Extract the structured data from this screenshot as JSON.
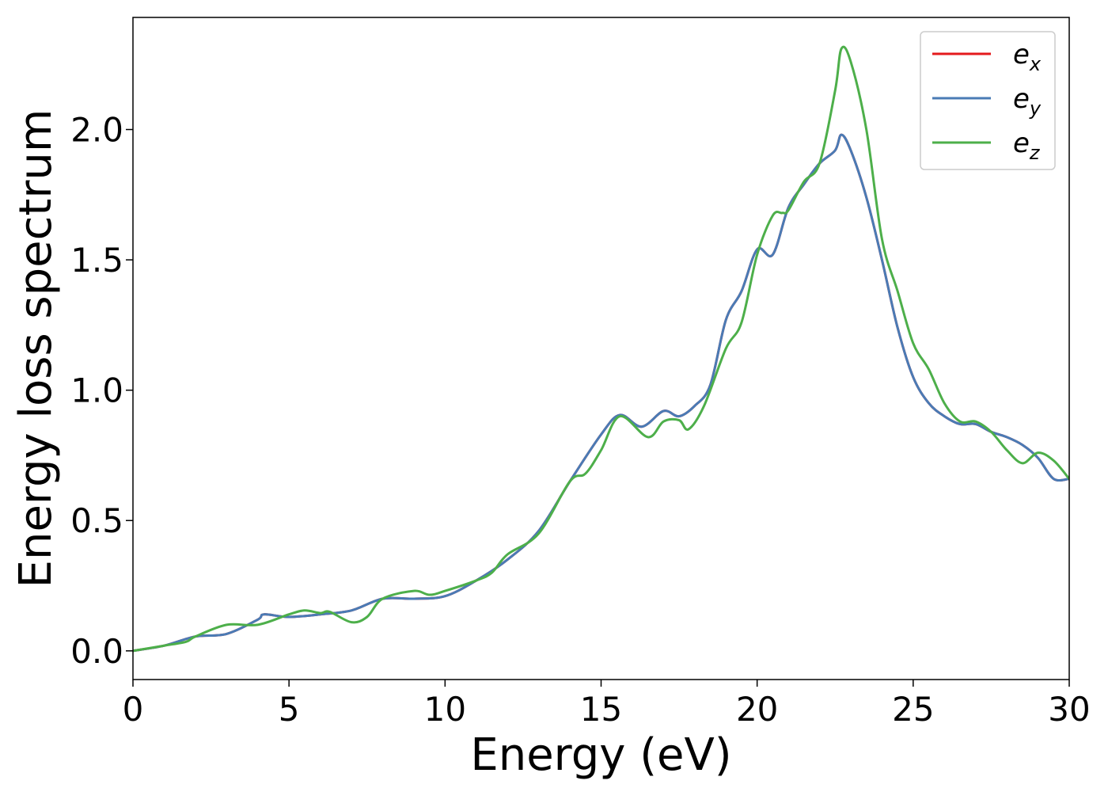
{
  "chart_data": {
    "type": "line",
    "title": "",
    "xlabel": "Energy (eV)",
    "ylabel": "Energy loss spectrum",
    "xlim": [
      0,
      30
    ],
    "ylim": [
      -0.11,
      2.43
    ],
    "xticks": [
      "0",
      "5",
      "10",
      "15",
      "20",
      "25",
      "30"
    ],
    "yticks": [
      "0.0",
      "0.5",
      "1.0",
      "1.5",
      "2.0"
    ],
    "grid": false,
    "legend_position": "top-right",
    "series": [
      {
        "name": "e_x",
        "legend_base": "e",
        "legend_sub": "x",
        "color": "#e41a1c",
        "x": [
          0,
          1,
          2,
          3,
          4,
          4.2,
          5,
          6,
          7,
          8,
          9,
          10,
          11,
          12,
          13,
          14,
          15,
          15.6,
          16.3,
          17,
          17.5,
          18,
          18.5,
          19,
          19.5,
          20,
          20.5,
          21,
          21.5,
          22,
          22.5,
          22.7,
          23,
          23.5,
          24,
          24.5,
          25,
          25.5,
          26,
          26.5,
          27,
          27.5,
          28,
          28.5,
          29,
          29.5,
          30
        ],
        "y": [
          0.0,
          0.02,
          0.055,
          0.065,
          0.12,
          0.14,
          0.13,
          0.14,
          0.155,
          0.2,
          0.2,
          0.21,
          0.27,
          0.35,
          0.46,
          0.65,
          0.83,
          0.905,
          0.86,
          0.92,
          0.9,
          0.94,
          1.02,
          1.27,
          1.38,
          1.54,
          1.52,
          1.7,
          1.79,
          1.87,
          1.92,
          1.98,
          1.92,
          1.74,
          1.5,
          1.24,
          1.05,
          0.95,
          0.9,
          0.87,
          0.87,
          0.84,
          0.82,
          0.79,
          0.74,
          0.66,
          0.66
        ]
      },
      {
        "name": "e_y",
        "legend_base": "e",
        "legend_sub": "y",
        "color": "#4a7bb5",
        "x": [
          0,
          1,
          2,
          3,
          4,
          4.2,
          5,
          6,
          7,
          8,
          9,
          10,
          11,
          12,
          13,
          14,
          15,
          15.6,
          16.3,
          17,
          17.5,
          18,
          18.5,
          19,
          19.5,
          20,
          20.5,
          21,
          21.5,
          22,
          22.5,
          22.7,
          23,
          23.5,
          24,
          24.5,
          25,
          25.5,
          26,
          26.5,
          27,
          27.5,
          28,
          28.5,
          29,
          29.5,
          30
        ],
        "y": [
          0.0,
          0.02,
          0.055,
          0.065,
          0.12,
          0.14,
          0.13,
          0.14,
          0.155,
          0.2,
          0.2,
          0.21,
          0.27,
          0.35,
          0.46,
          0.65,
          0.83,
          0.905,
          0.86,
          0.92,
          0.9,
          0.94,
          1.02,
          1.27,
          1.38,
          1.54,
          1.52,
          1.7,
          1.79,
          1.87,
          1.92,
          1.98,
          1.92,
          1.74,
          1.5,
          1.24,
          1.05,
          0.95,
          0.9,
          0.87,
          0.87,
          0.84,
          0.82,
          0.79,
          0.74,
          0.66,
          0.66
        ]
      },
      {
        "name": "e_z",
        "legend_base": "e",
        "legend_sub": "z",
        "color": "#4daf4a",
        "x": [
          0,
          1,
          1.7,
          2,
          3,
          4,
          5,
          5.5,
          6,
          6.3,
          7,
          7.5,
          8,
          9,
          9.5,
          10,
          11,
          11.5,
          12,
          13,
          14,
          14.5,
          15,
          15.6,
          16.5,
          17,
          17.5,
          17.8,
          18.3,
          19,
          19.5,
          20,
          20.5,
          20.8,
          21,
          21.5,
          22,
          22.5,
          22.7,
          23,
          23.5,
          24,
          24.5,
          25,
          25.5,
          26,
          26.5,
          27,
          27.5,
          28,
          28.5,
          29,
          29.5,
          30
        ],
        "y": [
          0.0,
          0.02,
          0.035,
          0.055,
          0.1,
          0.1,
          0.14,
          0.155,
          0.145,
          0.15,
          0.11,
          0.13,
          0.2,
          0.23,
          0.215,
          0.23,
          0.27,
          0.3,
          0.37,
          0.45,
          0.65,
          0.68,
          0.77,
          0.9,
          0.82,
          0.88,
          0.885,
          0.85,
          0.94,
          1.16,
          1.26,
          1.52,
          1.67,
          1.68,
          1.69,
          1.8,
          1.87,
          2.15,
          2.31,
          2.26,
          2.0,
          1.58,
          1.38,
          1.18,
          1.08,
          0.95,
          0.88,
          0.88,
          0.84,
          0.77,
          0.72,
          0.76,
          0.73,
          0.66
        ]
      }
    ]
  }
}
